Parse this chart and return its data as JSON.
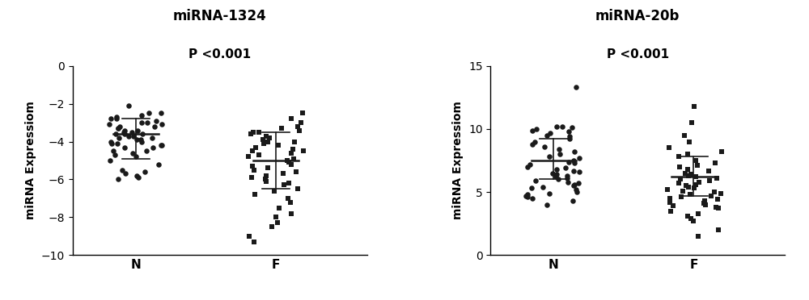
{
  "plot1": {
    "title": "miRNA-1324",
    "pvalue": "P <0.001",
    "ylabel": "miRNA Expressiom",
    "ylim": [
      -10,
      0
    ],
    "yticks": [
      0,
      -2,
      -4,
      -6,
      -8,
      -10
    ],
    "groups": [
      "N",
      "F"
    ],
    "N_mean": -3.6,
    "N_sd_upper": -2.8,
    "N_sd_lower": -4.9,
    "F_mean": -5.0,
    "F_sd_upper": -3.5,
    "F_sd_lower": -6.5,
    "N_data": [
      -2.1,
      -2.5,
      -2.5,
      -2.6,
      -2.7,
      -2.8,
      -2.8,
      -2.9,
      -3.0,
      -3.0,
      -3.1,
      -3.1,
      -3.2,
      -3.2,
      -3.3,
      -3.3,
      -3.4,
      -3.4,
      -3.5,
      -3.5,
      -3.6,
      -3.6,
      -3.6,
      -3.7,
      -3.7,
      -3.8,
      -3.8,
      -3.9,
      -3.9,
      -4.0,
      -4.0,
      -4.1,
      -4.1,
      -4.2,
      -4.2,
      -4.3,
      -4.3,
      -4.5,
      -4.5,
      -4.6,
      -4.7,
      -4.8,
      -5.0,
      -5.2,
      -5.5,
      -5.6,
      -5.7,
      -5.8,
      -5.9,
      -6.0
    ],
    "F_data": [
      -2.5,
      -2.8,
      -3.0,
      -3.2,
      -3.3,
      -3.4,
      -3.5,
      -3.5,
      -3.6,
      -3.7,
      -3.8,
      -3.9,
      -4.0,
      -4.0,
      -4.1,
      -4.2,
      -4.3,
      -4.4,
      -4.5,
      -4.5,
      -4.6,
      -4.7,
      -4.8,
      -4.9,
      -5.0,
      -5.1,
      -5.2,
      -5.3,
      -5.4,
      -5.5,
      -5.6,
      -5.7,
      -5.8,
      -5.9,
      -6.0,
      -6.1,
      -6.2,
      -6.3,
      -6.5,
      -6.6,
      -6.8,
      -7.0,
      -7.2,
      -7.5,
      -7.8,
      -8.0,
      -8.3,
      -8.5,
      -9.0,
      -9.3
    ]
  },
  "plot2": {
    "title": "miRNA-20b",
    "pvalue": "P <0.001",
    "ylabel": "miRNA Expressiom",
    "ylim": [
      0,
      15
    ],
    "yticks": [
      0,
      5,
      10,
      15
    ],
    "groups": [
      "N",
      "F"
    ],
    "N_mean": 7.5,
    "N_sd_upper": 9.2,
    "N_sd_lower": 6.0,
    "F_mean": 6.2,
    "F_sd_upper": 7.8,
    "F_sd_lower": 4.7,
    "N_data": [
      13.3,
      10.2,
      10.2,
      10.1,
      10.0,
      9.9,
      9.8,
      9.7,
      9.5,
      9.4,
      9.2,
      9.0,
      8.8,
      8.6,
      8.4,
      8.2,
      8.0,
      7.8,
      7.7,
      7.5,
      7.4,
      7.3,
      7.2,
      7.0,
      6.9,
      6.8,
      6.7,
      6.6,
      6.5,
      6.4,
      6.3,
      6.2,
      6.1,
      6.0,
      5.9,
      5.8,
      5.7,
      5.6,
      5.5,
      5.4,
      5.3,
      5.2,
      5.0,
      4.9,
      4.8,
      4.7,
      4.6,
      4.5,
      4.3,
      4.0
    ],
    "F_data": [
      11.8,
      10.5,
      9.5,
      9.0,
      8.5,
      8.2,
      8.0,
      7.8,
      7.5,
      7.3,
      7.1,
      7.0,
      6.8,
      6.7,
      6.5,
      6.4,
      6.3,
      6.2,
      6.1,
      6.0,
      5.9,
      5.8,
      5.7,
      5.6,
      5.5,
      5.4,
      5.3,
      5.2,
      5.1,
      5.0,
      4.9,
      4.8,
      4.7,
      4.6,
      4.5,
      4.4,
      4.3,
      4.2,
      4.1,
      4.0,
      3.9,
      3.8,
      3.7,
      3.5,
      3.3,
      3.1,
      2.9,
      2.7,
      2.0,
      1.5
    ]
  },
  "bg_color": "#ffffff",
  "marker_color": "#1a1a1a",
  "line_color": "#1a1a1a",
  "title_fontsize": 12,
  "pvalue_fontsize": 11,
  "label_fontsize": 10,
  "tick_fontsize": 10
}
